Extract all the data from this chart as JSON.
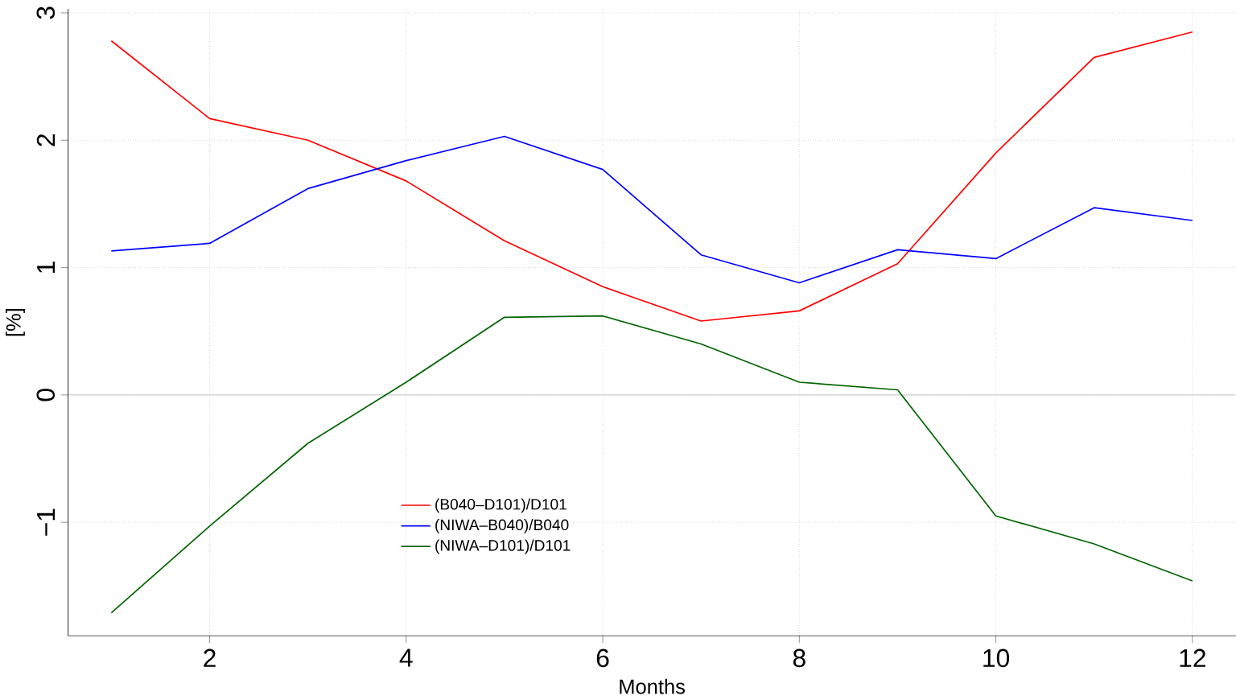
{
  "chart_data": {
    "type": "line",
    "xlabel": "Months",
    "ylabel": "[%]",
    "x": [
      1,
      2,
      3,
      4,
      5,
      6,
      7,
      8,
      9,
      10,
      11,
      12
    ],
    "series": [
      {
        "name": "(B040–D101)/D101",
        "color": "#ff0000",
        "values": [
          2.78,
          2.17,
          2.0,
          1.68,
          1.21,
          0.85,
          0.58,
          0.66,
          1.03,
          1.9,
          2.65,
          2.85
        ]
      },
      {
        "name": "(NIWA–B040)/B040",
        "color": "#0000ff",
        "values": [
          1.13,
          1.19,
          1.62,
          1.84,
          2.03,
          1.77,
          1.1,
          0.88,
          1.14,
          1.07,
          1.47,
          1.37
        ]
      },
      {
        "name": "(NIWA–D101)/D101",
        "color": "#006400",
        "values": [
          -1.71,
          -1.03,
          -0.38,
          0.1,
          0.61,
          0.62,
          0.4,
          0.1,
          0.04,
          -0.95,
          -1.17,
          -1.46
        ]
      }
    ],
    "xlim": [
      0.56,
      12.44
    ],
    "ylim": [
      -1.89,
      3.03
    ],
    "xticks": [
      2,
      4,
      6,
      8,
      10,
      12
    ],
    "yticks": [
      {
        "value": -1,
        "label": "−1"
      },
      0,
      1,
      2,
      3
    ],
    "ref_lines": [
      {
        "axis": "y",
        "value": 0,
        "color": "#bebebe"
      }
    ],
    "grid": true,
    "legend": "bottom",
    "marker": "none",
    "line_style": "solid"
  }
}
